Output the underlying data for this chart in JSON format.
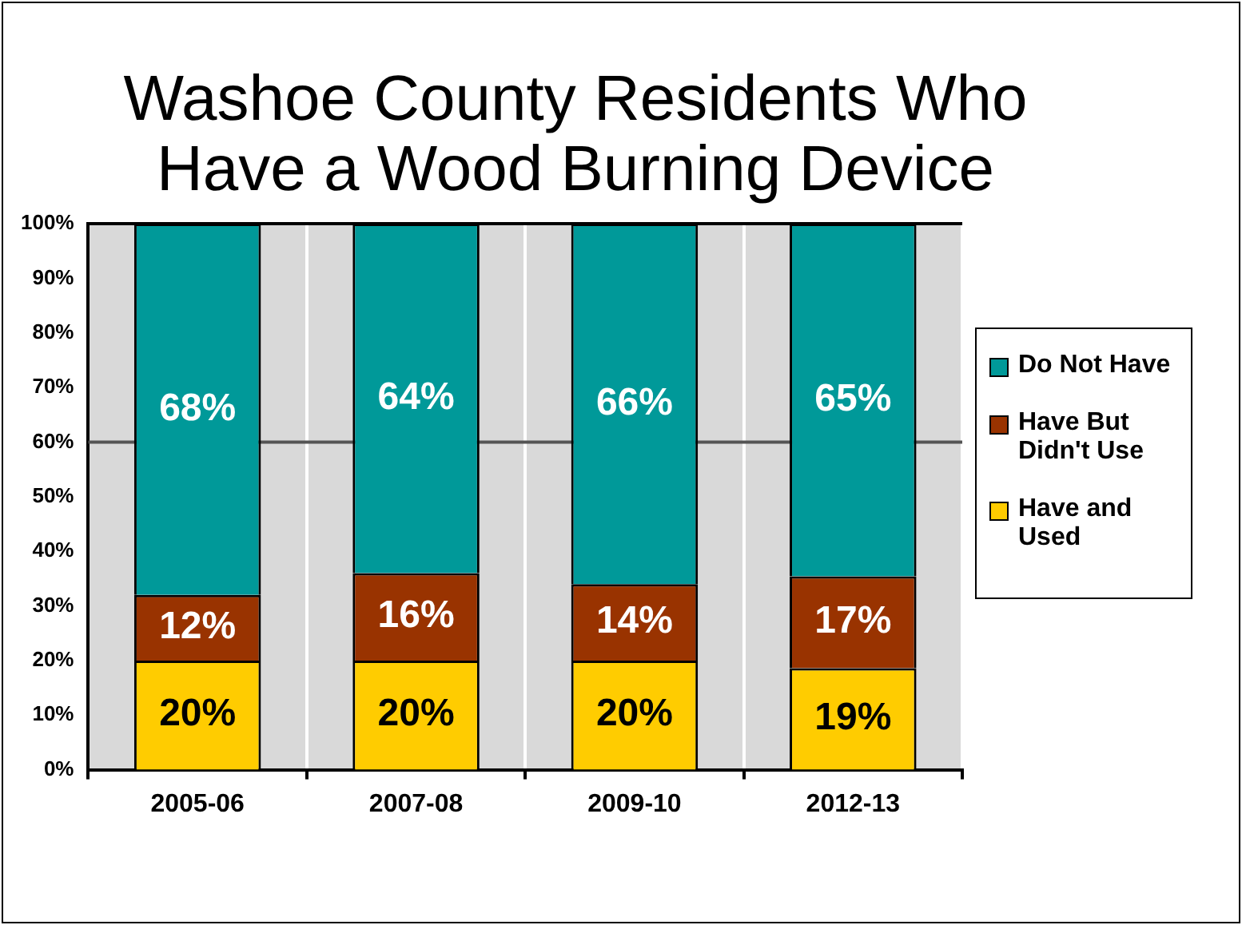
{
  "chart_data": {
    "type": "bar",
    "title": "Washoe County Residents Who Have a Wood Burning Device",
    "stacked": true,
    "categories": [
      "2005-06",
      "2007-08",
      "2009-10",
      "2012-13"
    ],
    "series": [
      {
        "name": "Have and Used",
        "color": "#ffcc00",
        "values": [
          20,
          20,
          20,
          18.6
        ],
        "value_labels": [
          "20%",
          "20%",
          "20%",
          "19%"
        ]
      },
      {
        "name": "Have But Didn't Use",
        "color": "#993300",
        "values": [
          12,
          16,
          14,
          16.8
        ],
        "value_labels": [
          "12%",
          "16%",
          "14%",
          "17%"
        ]
      },
      {
        "name": "Do Not Have",
        "color": "#009999",
        "values": [
          68,
          64,
          66,
          64.6
        ],
        "value_labels": [
          "68%",
          "64%",
          "66%",
          "65%"
        ]
      }
    ],
    "ylim": [
      0,
      100
    ],
    "yticks": [
      {
        "value": 0,
        "label": "0%"
      },
      {
        "value": 10,
        "label": "10%"
      },
      {
        "value": 20,
        "label": "20%"
      },
      {
        "value": 30,
        "label": "30%"
      },
      {
        "value": 40,
        "label": "40%"
      },
      {
        "value": 50,
        "label": "50%"
      },
      {
        "value": 60,
        "label": "60%"
      },
      {
        "value": 70,
        "label": "70%"
      },
      {
        "value": 80,
        "label": "80%"
      },
      {
        "value": 90,
        "label": "90%"
      },
      {
        "value": 100,
        "label": "100%"
      }
    ],
    "grid": "x",
    "ref_lines": [
      {
        "axis": "y",
        "value": 60,
        "color": "#555555"
      }
    ],
    "legend": "right"
  }
}
